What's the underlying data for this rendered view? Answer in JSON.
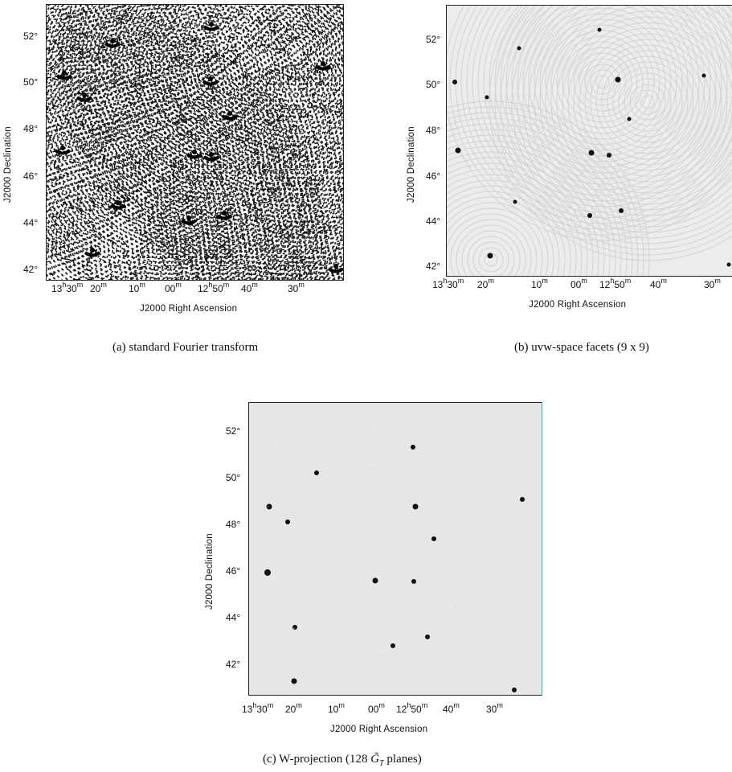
{
  "figures": [
    {
      "id": "a",
      "caption": "(a)  standard Fourier transform",
      "style": "noisy",
      "ylabel": "J2000 Declination",
      "xlabel": "J2000 Right Ascension",
      "yticks": [
        "52°",
        "50°",
        "48°",
        "46°",
        "44°",
        "42°"
      ],
      "xticks": [
        {
          "main": "13",
          "sup1": "h",
          "mid": "30",
          "sup2": "m"
        },
        {
          "main": "20",
          "sup2": "m"
        },
        {
          "main": "10",
          "sup2": "m"
        },
        {
          "main": "00",
          "sup2": "m"
        },
        {
          "main": "12",
          "sup1": "h",
          "mid": "50",
          "sup2": "m"
        },
        {
          "main": "40",
          "sup2": "m"
        },
        {
          "main": "30",
          "sup2": "m"
        }
      ]
    },
    {
      "id": "b",
      "caption": "(b)  uvw-space facets (9 x 9)",
      "style": "faceted",
      "ylabel": "J2000 Declination",
      "xlabel": "J2000 Right Ascension",
      "yticks": [
        "52°",
        "50°",
        "48°",
        "46°",
        "44°",
        "42°"
      ],
      "xticks": [
        {
          "main": "13",
          "sup1": "h",
          "mid": "30",
          "sup2": "m"
        },
        {
          "main": "20",
          "sup2": "m"
        },
        {
          "main": "10",
          "sup2": "m"
        },
        {
          "main": "00",
          "sup2": "m"
        },
        {
          "main": "12",
          "sup1": "h",
          "mid": "50",
          "sup2": "m"
        },
        {
          "main": "40",
          "sup2": "m"
        },
        {
          "main": "30",
          "sup2": "m"
        }
      ]
    },
    {
      "id": "c",
      "caption_prefix": "(c)  W-projection (128 ",
      "caption_math": "G̃",
      "caption_sub": "T",
      "caption_suffix": " planes)",
      "style": "clean",
      "ylabel": "J2000 Declination",
      "xlabel": "J2000 Right Ascension",
      "yticks": [
        "52°",
        "50°",
        "48°",
        "46°",
        "44°",
        "42°"
      ],
      "xticks": [
        {
          "main": "13",
          "sup1": "h",
          "mid": "30",
          "sup2": "m"
        },
        {
          "main": "20",
          "sup2": "m"
        },
        {
          "main": "10",
          "sup2": "m"
        },
        {
          "main": "00",
          "sup2": "m"
        },
        {
          "main": "12",
          "sup1": "h",
          "mid": "50",
          "sup2": "m"
        },
        {
          "main": "40",
          "sup2": "m"
        },
        {
          "main": "30",
          "sup2": "m"
        }
      ]
    }
  ],
  "colors": {
    "ink": "#111111",
    "panel_b_bg": "#ececec",
    "panel_c_bg": "#e6e6e6",
    "panel_c_edge": "#3aa6a6"
  }
}
